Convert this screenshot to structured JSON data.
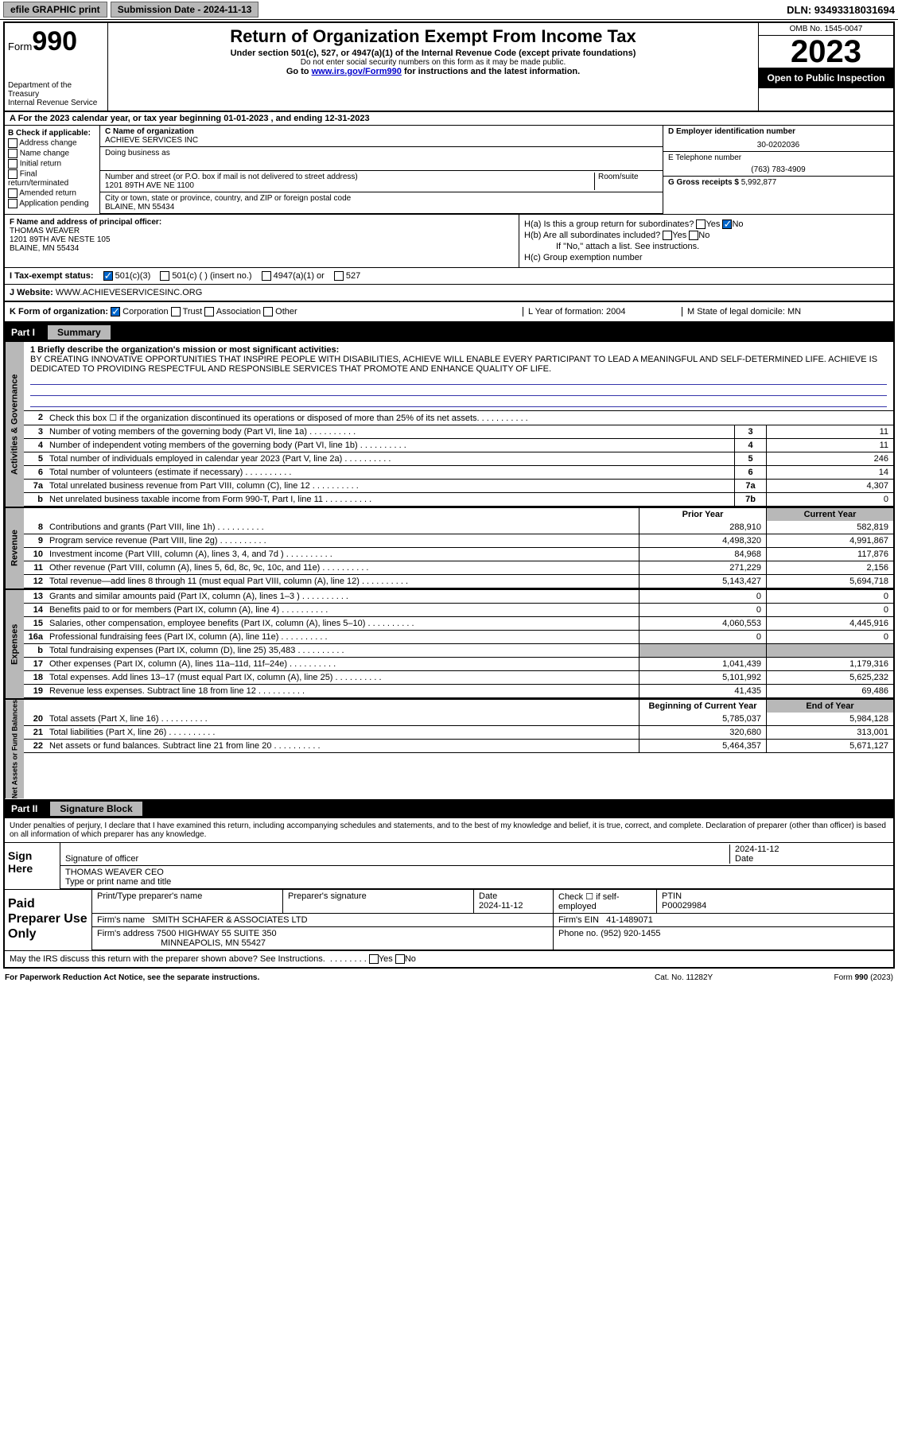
{
  "topbar": {
    "efile": "efile GRAPHIC print",
    "submission": "Submission Date - 2024-11-13",
    "dln": "DLN: 93493318031694"
  },
  "header": {
    "form_label": "Form",
    "form_num": "990",
    "dept": "Department of the Treasury",
    "irs": "Internal Revenue Service",
    "title": "Return of Organization Exempt From Income Tax",
    "sub": "Under section 501(c), 527, or 4947(a)(1) of the Internal Revenue Code (except private foundations)",
    "note": "Do not enter social security numbers on this form as it may be made public.",
    "link_pre": "Go to ",
    "link_url": "www.irs.gov/Form990",
    "link_post": " for instructions and the latest information.",
    "omb": "OMB No. 1545-0047",
    "year": "2023",
    "open": "Open to Public Inspection"
  },
  "tax_year": "A For the 2023 calendar year, or tax year beginning 01-01-2023   , and ending 12-31-2023",
  "section_b": {
    "label": "B Check if applicable:",
    "items": [
      "Address change",
      "Name change",
      "Initial return",
      "Final return/terminated",
      "Amended return",
      "Application pending"
    ]
  },
  "section_c": {
    "name_lbl": "C Name of organization",
    "name": "ACHIEVE SERVICES INC",
    "dba_lbl": "Doing business as",
    "dba": "",
    "addr_lbl": "Number and street (or P.O. box if mail is not delivered to street address)",
    "room_lbl": "Room/suite",
    "addr": "1201 89TH AVE NE 1100",
    "city_lbl": "City or town, state or province, country, and ZIP or foreign postal code",
    "city": "BLAINE, MN  55434"
  },
  "section_d": {
    "ein_lbl": "D Employer identification number",
    "ein": "30-0202036",
    "phone_lbl": "E Telephone number",
    "phone": "(763) 783-4909",
    "gross_lbl": "G Gross receipts $",
    "gross": "5,992,877"
  },
  "section_f": {
    "lbl": "F Name and address of principal officer:",
    "name": "THOMAS WEAVER",
    "addr1": "1201 89TH AVE NESTE 105",
    "addr2": "BLAINE, MN  55434"
  },
  "section_h": {
    "ha": "H(a)  Is this a group return for subordinates?",
    "hb": "H(b)  Are all subordinates included?",
    "hb_note": "If \"No,\" attach a list. See instructions.",
    "hc": "H(c)  Group exemption number",
    "yes": "Yes",
    "no": "No"
  },
  "status": {
    "lbl": "I  Tax-exempt status:",
    "opts": [
      "501(c)(3)",
      "501(c) (  ) (insert no.)",
      "4947(a)(1) or",
      "527"
    ]
  },
  "website": {
    "lbl": "J  Website:",
    "url": "WWW.ACHIEVESERVICESINC.ORG"
  },
  "krow": {
    "k": "K Form of organization:",
    "opts": [
      "Corporation",
      "Trust",
      "Association",
      "Other"
    ],
    "l": "L Year of formation: 2004",
    "m": "M State of legal domicile: MN"
  },
  "part1": {
    "label": "Part I",
    "title": "Summary"
  },
  "mission": {
    "lbl": "1  Briefly describe the organization's mission or most significant activities:",
    "text": "BY CREATING INNOVATIVE OPPORTUNITIES THAT INSPIRE PEOPLE WITH DISABILITIES, ACHIEVE WILL ENABLE EVERY PARTICIPANT TO LEAD A MEANINGFUL AND SELF-DETERMINED LIFE. ACHIEVE IS DEDICATED TO PROVIDING RESPECTFUL AND RESPONSIBLE SERVICES THAT PROMOTE AND ENHANCE QUALITY OF LIFE."
  },
  "gov_rows": [
    {
      "n": "2",
      "t": "Check this box ☐ if the organization discontinued its operations or disposed of more than 25% of its net assets.",
      "b": "",
      "v": ""
    },
    {
      "n": "3",
      "t": "Number of voting members of the governing body (Part VI, line 1a)",
      "b": "3",
      "v": "11"
    },
    {
      "n": "4",
      "t": "Number of independent voting members of the governing body (Part VI, line 1b)",
      "b": "4",
      "v": "11"
    },
    {
      "n": "5",
      "t": "Total number of individuals employed in calendar year 2023 (Part V, line 2a)",
      "b": "5",
      "v": "246"
    },
    {
      "n": "6",
      "t": "Total number of volunteers (estimate if necessary)",
      "b": "6",
      "v": "14"
    },
    {
      "n": "7a",
      "t": "Total unrelated business revenue from Part VIII, column (C), line 12",
      "b": "7a",
      "v": "4,307"
    },
    {
      "n": "b",
      "t": "Net unrelated business taxable income from Form 990-T, Part I, line 11",
      "b": "7b",
      "v": "0"
    }
  ],
  "col_hdrs": {
    "prior": "Prior Year",
    "current": "Current Year"
  },
  "rev_rows": [
    {
      "n": "8",
      "t": "Contributions and grants (Part VIII, line 1h)",
      "p": "288,910",
      "c": "582,819"
    },
    {
      "n": "9",
      "t": "Program service revenue (Part VIII, line 2g)",
      "p": "4,498,320",
      "c": "4,991,867"
    },
    {
      "n": "10",
      "t": "Investment income (Part VIII, column (A), lines 3, 4, and 7d )",
      "p": "84,968",
      "c": "117,876"
    },
    {
      "n": "11",
      "t": "Other revenue (Part VIII, column (A), lines 5, 6d, 8c, 9c, 10c, and 11e)",
      "p": "271,229",
      "c": "2,156"
    },
    {
      "n": "12",
      "t": "Total revenue—add lines 8 through 11 (must equal Part VIII, column (A), line 12)",
      "p": "5,143,427",
      "c": "5,694,718"
    }
  ],
  "exp_rows": [
    {
      "n": "13",
      "t": "Grants and similar amounts paid (Part IX, column (A), lines 1–3 )",
      "p": "0",
      "c": "0"
    },
    {
      "n": "14",
      "t": "Benefits paid to or for members (Part IX, column (A), line 4)",
      "p": "0",
      "c": "0"
    },
    {
      "n": "15",
      "t": "Salaries, other compensation, employee benefits (Part IX, column (A), lines 5–10)",
      "p": "4,060,553",
      "c": "4,445,916"
    },
    {
      "n": "16a",
      "t": "Professional fundraising fees (Part IX, column (A), line 11e)",
      "p": "0",
      "c": "0"
    },
    {
      "n": "b",
      "t": "Total fundraising expenses (Part IX, column (D), line 25) 35,483",
      "p": "",
      "c": "",
      "shade": true
    },
    {
      "n": "17",
      "t": "Other expenses (Part IX, column (A), lines 11a–11d, 11f–24e)",
      "p": "1,041,439",
      "c": "1,179,316"
    },
    {
      "n": "18",
      "t": "Total expenses. Add lines 13–17 (must equal Part IX, column (A), line 25)",
      "p": "5,101,992",
      "c": "5,625,232"
    },
    {
      "n": "19",
      "t": "Revenue less expenses. Subtract line 18 from line 12",
      "p": "41,435",
      "c": "69,486"
    }
  ],
  "na_hdrs": {
    "beg": "Beginning of Current Year",
    "end": "End of Year"
  },
  "na_rows": [
    {
      "n": "20",
      "t": "Total assets (Part X, line 16)",
      "p": "5,785,037",
      "c": "5,984,128"
    },
    {
      "n": "21",
      "t": "Total liabilities (Part X, line 26)",
      "p": "320,680",
      "c": "313,001"
    },
    {
      "n": "22",
      "t": "Net assets or fund balances. Subtract line 21 from line 20",
      "p": "5,464,357",
      "c": "5,671,127"
    }
  ],
  "side_labels": {
    "gov": "Activities & Governance",
    "rev": "Revenue",
    "exp": "Expenses",
    "na": "Net Assets or Fund Balances"
  },
  "part2": {
    "label": "Part II",
    "title": "Signature Block"
  },
  "sig_decl": "Under penalties of perjury, I declare that I have examined this return, including accompanying schedules and statements, and to the best of my knowledge and belief, it is true, correct, and complete. Declaration of preparer (other than officer) is based on all information of which preparer has any knowledge.",
  "sign": {
    "lbl": "Sign Here",
    "sig_lbl": "Signature of officer",
    "date_lbl": "Date",
    "date": "2024-11-12",
    "name": "THOMAS WEAVER CEO",
    "name_lbl": "Type or print name and title"
  },
  "prep": {
    "lbl": "Paid Preparer Use Only",
    "pt_lbl": "Print/Type preparer's name",
    "sig_lbl": "Preparer's signature",
    "date_lbl": "Date",
    "date": "2024-11-12",
    "check_lbl": "Check ☐ if self-employed",
    "ptin_lbl": "PTIN",
    "ptin": "P00029984",
    "firm_lbl": "Firm's name",
    "firm": "SMITH SCHAFER & ASSOCIATES LTD",
    "ein_lbl": "Firm's EIN",
    "ein": "41-1489071",
    "addr_lbl": "Firm's address",
    "addr1": "7500 HIGHWAY 55 SUITE 350",
    "addr2": "MINNEAPOLIS, MN  55427",
    "phone_lbl": "Phone no.",
    "phone": "(952) 920-1455"
  },
  "discuss": "May the IRS discuss this return with the preparer shown above? See Instructions.",
  "footer": {
    "l": "For Paperwork Reduction Act Notice, see the separate instructions.",
    "c": "Cat. No. 11282Y",
    "r": "Form 990 (2023)"
  }
}
